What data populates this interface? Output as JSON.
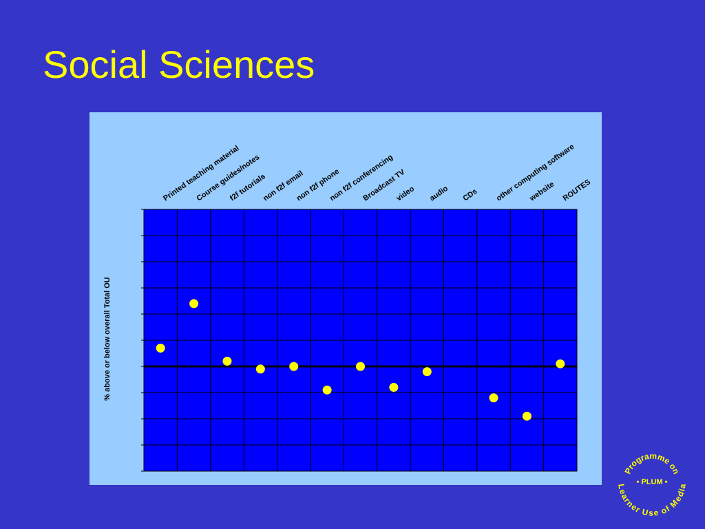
{
  "chart_data": {
    "type": "scatter",
    "title": "Social Sciences",
    "y_label": "% above or below overall Total OU",
    "categories": [
      "Printed teaching material",
      "Course guides/notes",
      "f2f tutorials",
      "non f2f email",
      "non f2f phone",
      "non f2f conferencing",
      "Broadcast TV",
      "video",
      "audio",
      "CDs",
      "other computing software",
      "website",
      "ROUTES"
    ],
    "values": [
      0.7,
      2.4,
      0.2,
      -0.1,
      0,
      -0.9,
      0,
      -0.8,
      -0.2,
      null,
      -1.2,
      -1.9,
      0.1
    ],
    "color": "#ffff00",
    "ylim": [
      -4,
      6
    ],
    "yticks": [
      -4,
      -3,
      -2,
      -1,
      0,
      1,
      2,
      3,
      4,
      5,
      6
    ],
    "grid": true
  },
  "logo": {
    "top": "Programme on",
    "middle": "• PLUM •",
    "bottom": "Learner Use of Media"
  }
}
